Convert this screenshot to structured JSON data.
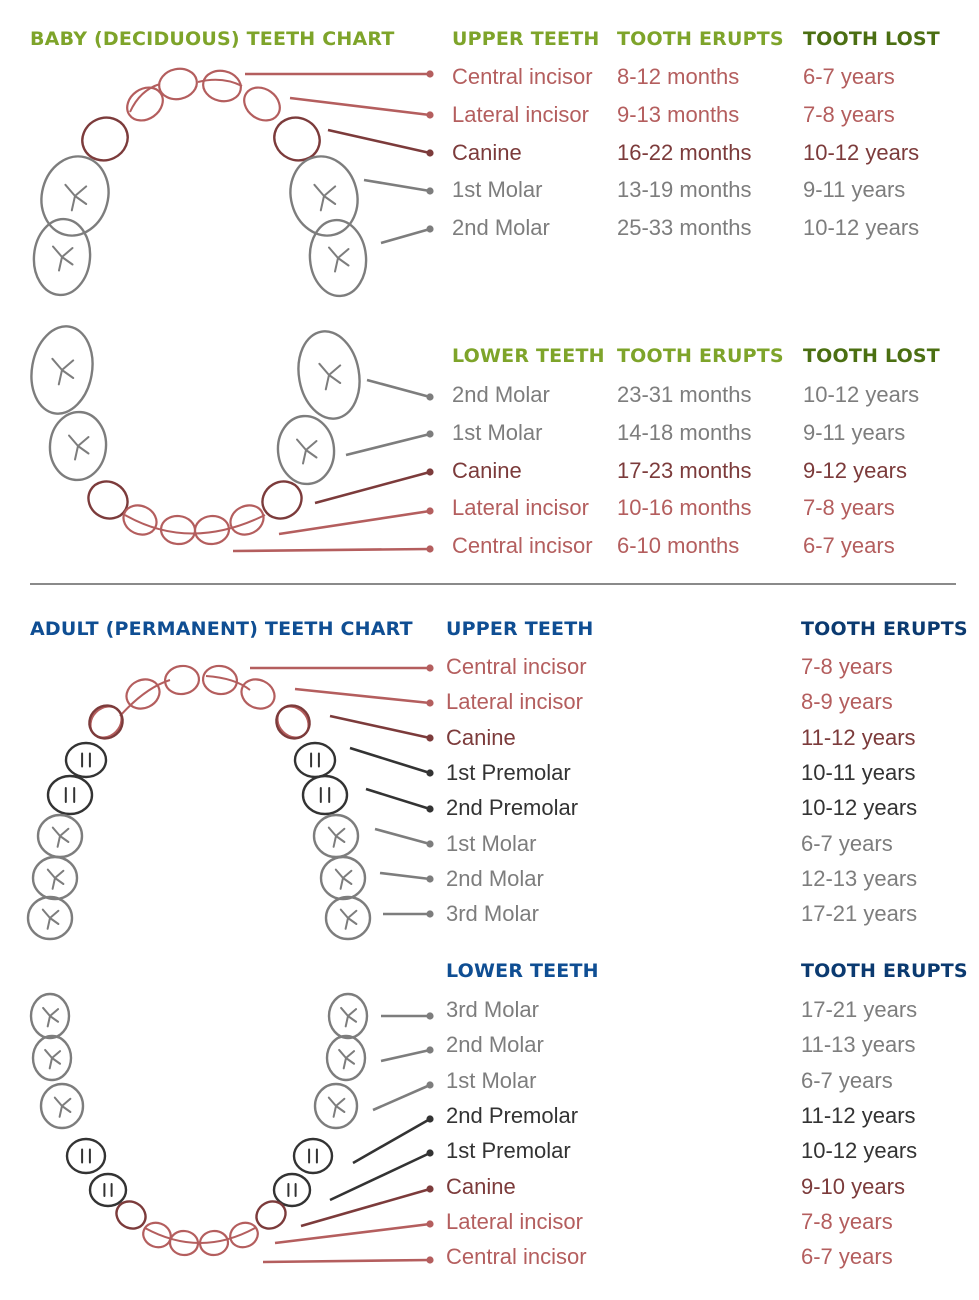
{
  "colors": {
    "baby_header": "#7ea42a",
    "baby_lost_header": "#4b6f12",
    "adult_header": "#0f4e93",
    "adult_erupts_header": "#0b3a70",
    "incisor": "#b45e5e",
    "canine": "#7c3b3b",
    "premolar": "#333333",
    "molar": "#7d7d7d",
    "divider": "#8a8a8a"
  },
  "baby": {
    "title": "BABY (DECIDUOUS) TEETH CHART",
    "upper": {
      "header": "UPPER TEETH",
      "erupts_header": "TOOTH ERUPTS",
      "lost_header": "TOOTH LOST",
      "rows": [
        {
          "tooth": "Central incisor",
          "erupts": "8-12 months",
          "lost": "6-7 years",
          "kind": "incisor"
        },
        {
          "tooth": "Lateral incisor",
          "erupts": "9-13 months",
          "lost": "7-8 years",
          "kind": "incisor"
        },
        {
          "tooth": "Canine",
          "erupts": "16-22 months",
          "lost": "10-12 years",
          "kind": "canine"
        },
        {
          "tooth": "1st Molar",
          "erupts": "13-19 months",
          "lost": "9-11 years",
          "kind": "molar"
        },
        {
          "tooth": "2nd Molar",
          "erupts": "25-33 months",
          "lost": "10-12 years",
          "kind": "molar"
        }
      ]
    },
    "lower": {
      "header": "LOWER TEETH",
      "erupts_header": "TOOTH ERUPTS",
      "lost_header": "TOOTH LOST",
      "rows": [
        {
          "tooth": "2nd Molar",
          "erupts": "23-31 months",
          "lost": "10-12 years",
          "kind": "molar"
        },
        {
          "tooth": "1st Molar",
          "erupts": "14-18 months",
          "lost": "9-11 years",
          "kind": "molar"
        },
        {
          "tooth": "Canine",
          "erupts": "17-23 months",
          "lost": "9-12 years",
          "kind": "canine"
        },
        {
          "tooth": "Lateral incisor",
          "erupts": "10-16 months",
          "lost": "7-8 years",
          "kind": "incisor"
        },
        {
          "tooth": "Central incisor",
          "erupts": "6-10 months",
          "lost": "6-7 years",
          "kind": "incisor"
        }
      ]
    }
  },
  "adult": {
    "title": "ADULT (PERMANENT) TEETH CHART",
    "upper": {
      "header": "UPPER TEETH",
      "erupts_header": "TOOTH ERUPTS",
      "rows": [
        {
          "tooth": "Central incisor",
          "erupts": "7-8 years",
          "kind": "incisor"
        },
        {
          "tooth": "Lateral incisor",
          "erupts": "8-9 years",
          "kind": "incisor"
        },
        {
          "tooth": "Canine",
          "erupts": "11-12 years",
          "kind": "canine"
        },
        {
          "tooth": "1st Premolar",
          "erupts": "10-11 years",
          "kind": "premolar"
        },
        {
          "tooth": "2nd Premolar",
          "erupts": "10-12 years",
          "kind": "premolar"
        },
        {
          "tooth": "1st Molar",
          "erupts": "6-7 years",
          "kind": "molar"
        },
        {
          "tooth": "2nd Molar",
          "erupts": "12-13 years",
          "kind": "molar"
        },
        {
          "tooth": "3rd Molar",
          "erupts": "17-21 years",
          "kind": "molar"
        }
      ]
    },
    "lower": {
      "header": "LOWER TEETH",
      "erupts_header": "TOOTH ERUPTS",
      "rows": [
        {
          "tooth": "3rd Molar",
          "erupts": "17-21 years",
          "kind": "molar"
        },
        {
          "tooth": "2nd Molar",
          "erupts": "11-13 years",
          "kind": "molar"
        },
        {
          "tooth": "1st Molar",
          "erupts": "6-7 years",
          "kind": "molar"
        },
        {
          "tooth": "2nd Premolar",
          "erupts": "11-12 years",
          "kind": "premolar"
        },
        {
          "tooth": "1st Premolar",
          "erupts": "10-12 years",
          "kind": "premolar"
        },
        {
          "tooth": "Canine",
          "erupts": "9-10 years",
          "kind": "canine"
        },
        {
          "tooth": "Lateral incisor",
          "erupts": "7-8 years",
          "kind": "incisor"
        },
        {
          "tooth": "Central incisor",
          "erupts": "6-7 years",
          "kind": "incisor"
        }
      ]
    }
  }
}
